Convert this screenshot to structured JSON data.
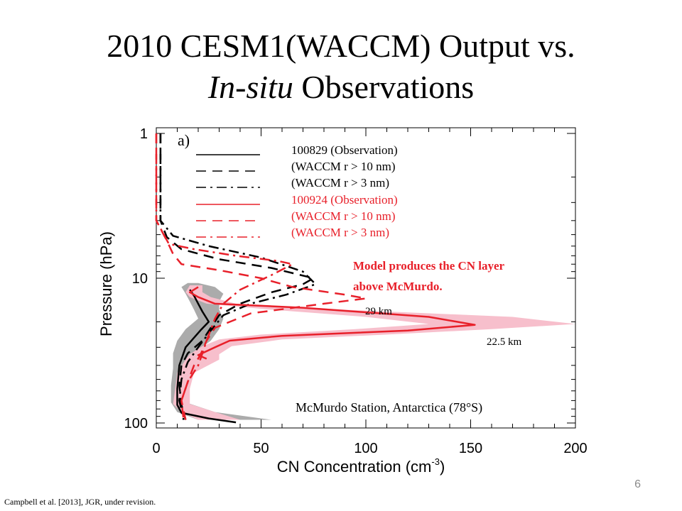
{
  "slide": {
    "title_line1": "2010 CESM1(WACCM) Output vs.",
    "title_line2_italic": "In-situ",
    "title_line2_rest": " Observations",
    "page_number": "6",
    "citation": "Campbell et al. [2013], JGR, under revision."
  },
  "chart_data": {
    "type": "line",
    "panel_label": "a)",
    "xlabel": "CN Concentration (cm",
    "xlabel_exponent": "-3",
    "xlabel_close": ")",
    "ylabel": "Pressure (hPa)",
    "xlim": [
      0,
      200
    ],
    "ylim": [
      100,
      1
    ],
    "y_scale": "log",
    "y_reversed": true,
    "xticks": [
      0,
      50,
      100,
      150,
      200
    ],
    "yticks": [
      1,
      10,
      100
    ],
    "legend": [
      {
        "date": "100829",
        "label": "(Observation)",
        "color": "#000000",
        "dash": "solid"
      },
      {
        "date": "",
        "label": "(WACCM r > 10 nm)",
        "color": "#000000",
        "dash": "dashed"
      },
      {
        "date": "",
        "label": "(WACCM r > 3 nm)",
        "color": "#000000",
        "dash": "dashdot"
      },
      {
        "date": "100924",
        "label": "(Observation)",
        "color": "#e8202a",
        "dash": "solid"
      },
      {
        "date": "",
        "label": "(WACCM r > 10 nm)",
        "color": "#e8202a",
        "dash": "dashed"
      },
      {
        "date": "",
        "label": "(WACCM r > 3 nm)",
        "color": "#e8202a",
        "dash": "dashdot"
      }
    ],
    "annotations": {
      "model_note_line1": "Model produces the CN layer",
      "model_note_line2": "above McMurdo.",
      "label_29km": "29 km",
      "label_225km": "22.5 km",
      "station": "McMurdo Station, Antarctica (78°S)"
    },
    "series": [
      {
        "name": "100829 (Observation)",
        "color": "#000000",
        "dash": "solid",
        "points": [
          [
            16,
            12.0
          ],
          [
            18,
            13.2
          ],
          [
            20,
            15.0
          ],
          [
            22,
            17.0
          ],
          [
            25,
            20.0
          ],
          [
            21,
            23.0
          ],
          [
            14,
            30.0
          ],
          [
            11,
            40.0
          ],
          [
            10,
            58.0
          ],
          [
            10,
            75.0
          ],
          [
            12,
            85.0
          ],
          [
            25,
            93.0
          ],
          [
            38,
            99.0
          ]
        ]
      },
      {
        "name": "100829 (WACCM r > 10 nm)",
        "color": "#000000",
        "dash": "dashed",
        "points": [
          [
            2,
            1.0
          ],
          [
            2,
            4.0
          ],
          [
            5,
            5.2
          ],
          [
            12,
            6.3
          ],
          [
            30,
            7.4
          ],
          [
            55,
            8.5
          ],
          [
            75,
            10.0
          ],
          [
            70,
            11.0
          ],
          [
            55,
            12.5
          ],
          [
            40,
            15.0
          ],
          [
            30,
            18.0
          ],
          [
            26,
            22.0
          ],
          [
            22,
            27.0
          ],
          [
            15,
            33.0
          ],
          [
            12,
            40.0
          ],
          [
            11,
            55.0
          ],
          [
            12,
            75.0
          ],
          [
            14,
            95.0
          ]
        ]
      },
      {
        "name": "100829 (WACCM r > 3 nm)",
        "color": "#000000",
        "dash": "dashdot",
        "points": [
          [
            2,
            1.0
          ],
          [
            2,
            4.0
          ],
          [
            8,
            5.1
          ],
          [
            25,
            6.0
          ],
          [
            50,
            7.2
          ],
          [
            70,
            9.0
          ],
          [
            76,
            11.0
          ],
          [
            62,
            13.0
          ],
          [
            45,
            15.0
          ],
          [
            32,
            18.0
          ],
          [
            26,
            23.0
          ],
          [
            20,
            30.0
          ],
          [
            15,
            38.0
          ],
          [
            12,
            50.0
          ],
          [
            11,
            70.0
          ],
          [
            13,
            95.0
          ]
        ]
      },
      {
        "name": "100924 (Observation)",
        "color": "#e8202a",
        "dash": "solid",
        "points": [
          [
            20,
            11.5
          ],
          [
            16,
            12.5
          ],
          [
            20,
            13.5
          ],
          [
            28,
            15.0
          ],
          [
            70,
            16.0
          ],
          [
            130,
            18.5
          ],
          [
            152,
            21.0
          ],
          [
            120,
            23.0
          ],
          [
            60,
            25.0
          ],
          [
            35,
            27.0
          ],
          [
            28,
            30.0
          ],
          [
            20,
            34.0
          ],
          [
            24,
            36.0
          ]
        ]
      },
      {
        "name": "100924 (WACCM r > 10 nm)",
        "color": "#e8202a",
        "dash": "dashed",
        "points": [
          [
            0,
            1.0
          ],
          [
            0,
            4.0
          ],
          [
            5,
            5.5
          ],
          [
            8,
            6.8
          ],
          [
            12,
            8.0
          ],
          [
            30,
            8.8
          ],
          [
            50,
            10.0
          ],
          [
            65,
            11.5
          ],
          [
            90,
            13.0
          ],
          [
            100,
            13.8
          ],
          [
            80,
            15.0
          ],
          [
            45,
            17.5
          ],
          [
            28,
            22.0
          ],
          [
            24,
            27.0
          ],
          [
            21,
            34.0
          ],
          [
            18,
            40.0
          ],
          [
            15,
            52.0
          ],
          [
            12,
            70.0
          ],
          [
            14,
            95.0
          ]
        ]
      },
      {
        "name": "100924 (WACCM r > 3 nm)",
        "color": "#e8202a",
        "dash": "dashdot",
        "points": [
          [
            0,
            1.0
          ],
          [
            0,
            4.0
          ],
          [
            6,
            5.8
          ],
          [
            18,
            6.3
          ],
          [
            38,
            7.0
          ],
          [
            58,
            7.6
          ],
          [
            65,
            8.0
          ],
          [
            55,
            9.5
          ],
          [
            40,
            12.0
          ],
          [
            32,
            15.0
          ],
          [
            28,
            19.0
          ],
          [
            24,
            27.0
          ],
          [
            22,
            33.0
          ],
          [
            20,
            40.0
          ],
          [
            15,
            52.0
          ],
          [
            12,
            70.0
          ],
          [
            13,
            95.0
          ]
        ]
      }
    ],
    "bands": [
      {
        "color": "#ababab",
        "description": "grey",
        "points": [
          [
            15,
            20,
            10.8
          ],
          [
            12,
            28,
            11.5
          ],
          [
            14,
            32,
            12.8
          ],
          [
            16,
            30,
            14.5
          ],
          [
            18,
            30,
            16.5
          ],
          [
            20,
            32,
            19.0
          ],
          [
            14,
            30,
            22.5
          ],
          [
            10,
            26,
            27.0
          ],
          [
            8,
            18,
            33.0
          ],
          [
            8,
            16,
            42.0
          ],
          [
            7,
            14,
            55.0
          ],
          [
            7,
            14,
            72.0
          ],
          [
            10,
            28,
            84.0
          ],
          [
            20,
            55,
            95.0
          ]
        ]
      },
      {
        "color": "#f7bfcc",
        "description": "pink",
        "points": [
          [
            16,
            22,
            11.2
          ],
          [
            14,
            22,
            12.5
          ],
          [
            16,
            26,
            13.5
          ],
          [
            24,
            38,
            15.0
          ],
          [
            55,
            90,
            16.5
          ],
          [
            100,
            170,
            18.5
          ],
          [
            130,
            200,
            20.7
          ],
          [
            95,
            160,
            22.5
          ],
          [
            50,
            110,
            24.5
          ],
          [
            30,
            60,
            26.5
          ],
          [
            22,
            36,
            29.5
          ],
          [
            16,
            30,
            33.5
          ],
          [
            14,
            30,
            36.5
          ],
          [
            10,
            18,
            45.0
          ],
          [
            9,
            16,
            58.0
          ],
          [
            8,
            16,
            74.0
          ],
          [
            12,
            28,
            84.0
          ],
          [
            20,
            40,
            95.0
          ]
        ]
      }
    ]
  }
}
